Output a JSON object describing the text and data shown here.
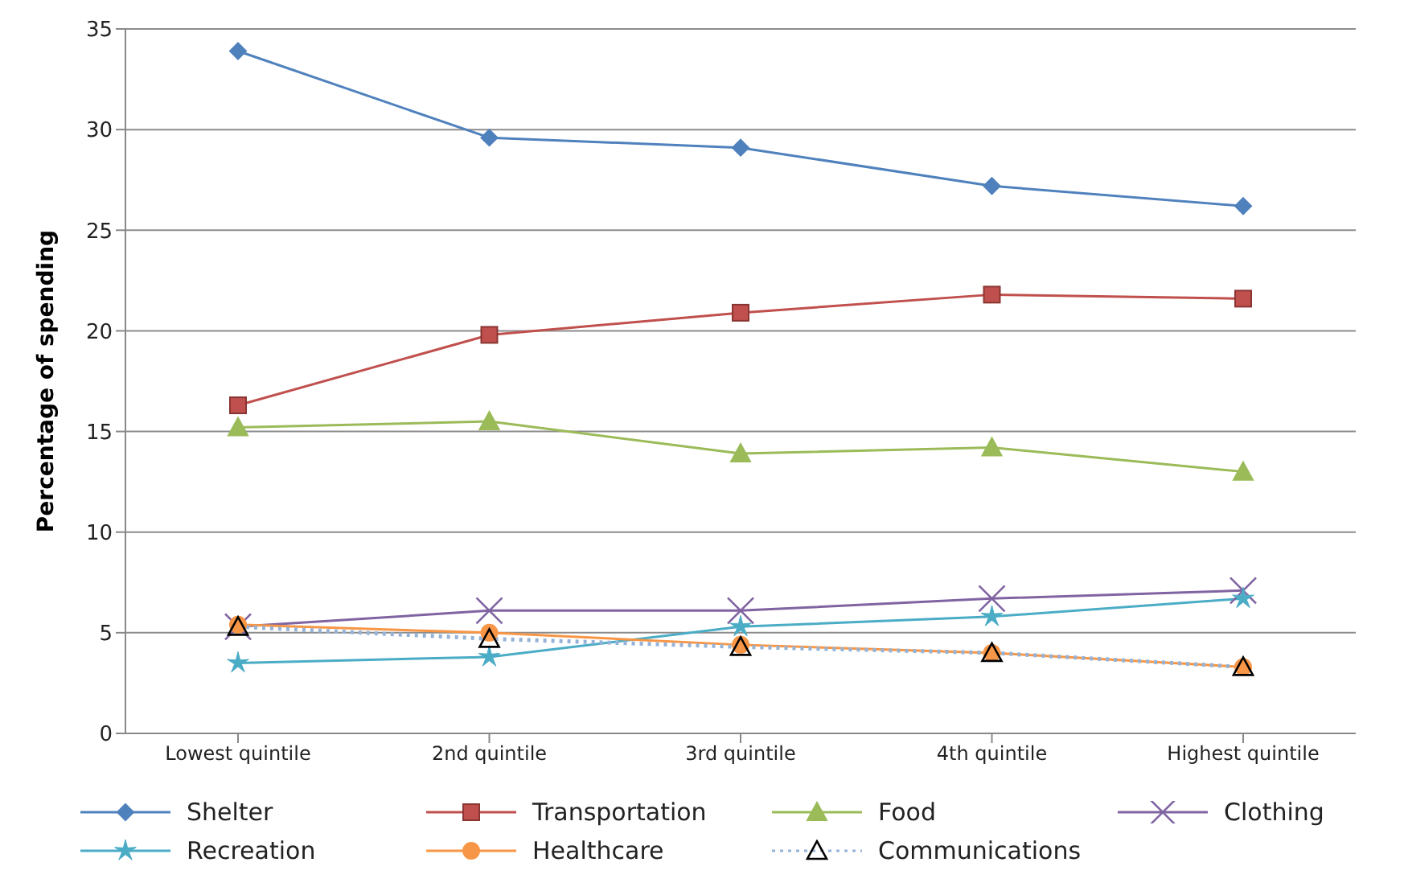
{
  "chart_data": {
    "type": "line",
    "ylabel": "Percentage of spending",
    "categories": [
      "Lowest quintile",
      "2nd quintile",
      "3rd quintile",
      "4th quintile",
      "Highest quintile"
    ],
    "series": [
      {
        "name": "Shelter",
        "color": "#4f81bd",
        "marker": "diamond",
        "values": [
          33.9,
          29.6,
          29.1,
          27.2,
          26.2
        ]
      },
      {
        "name": "Transportation",
        "color": "#c0504d",
        "marker": "square",
        "values": [
          16.3,
          19.8,
          20.9,
          21.8,
          21.6
        ]
      },
      {
        "name": "Food",
        "color": "#9bbb59",
        "marker": "triangle",
        "values": [
          15.2,
          15.5,
          13.9,
          14.2,
          13.0
        ]
      },
      {
        "name": "Clothing",
        "color": "#8064a2",
        "marker": "cross",
        "values": [
          5.3,
          6.1,
          6.1,
          6.7,
          7.1
        ]
      },
      {
        "name": "Recreation",
        "color": "#4bacc6",
        "marker": "star",
        "values": [
          3.5,
          3.8,
          5.3,
          5.8,
          6.7
        ]
      },
      {
        "name": "Healthcare",
        "color": "#f79646",
        "marker": "circle",
        "values": [
          5.4,
          5.0,
          4.4,
          4.0,
          3.3
        ]
      },
      {
        "name": "Communications",
        "color": "#95b3d7",
        "marker": "triangle",
        "line_style": "dotted",
        "values": [
          5.3,
          4.7,
          4.3,
          4.0,
          3.3
        ]
      }
    ],
    "ylim": [
      0,
      35
    ],
    "yticks": [
      0,
      5,
      10,
      15,
      20,
      25,
      30,
      35
    ],
    "grid": "y",
    "legend": "bottom"
  }
}
